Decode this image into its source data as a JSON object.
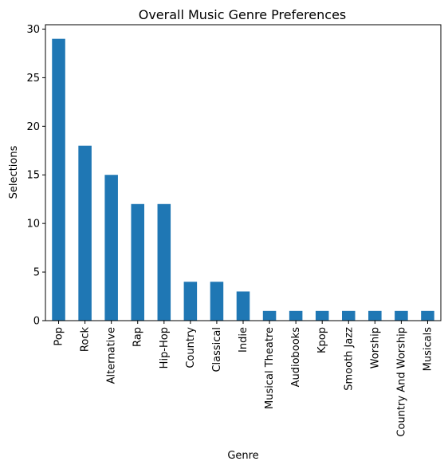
{
  "chart_data": {
    "type": "bar",
    "title": "Overall Music Genre Preferences",
    "xlabel": "Genre",
    "ylabel": "Selections",
    "categories": [
      "Pop",
      "Rock",
      "Alternative",
      "Rap",
      "Hip-Hop",
      "Country",
      "Classical",
      "Indie",
      "Musical Theatre",
      "Audiobooks",
      "Kpop",
      "Smooth Jazz",
      "Worship",
      "Country And Worship",
      "Musicals"
    ],
    "values": [
      29,
      18,
      15,
      12,
      12,
      4,
      4,
      3,
      1,
      1,
      1,
      1,
      1,
      1,
      1
    ],
    "ylim": [
      0,
      30.45
    ],
    "yticks": [
      0,
      5,
      10,
      15,
      20,
      25,
      30
    ],
    "grid": false,
    "legend": "none",
    "bar_color": "#1f77b4"
  }
}
